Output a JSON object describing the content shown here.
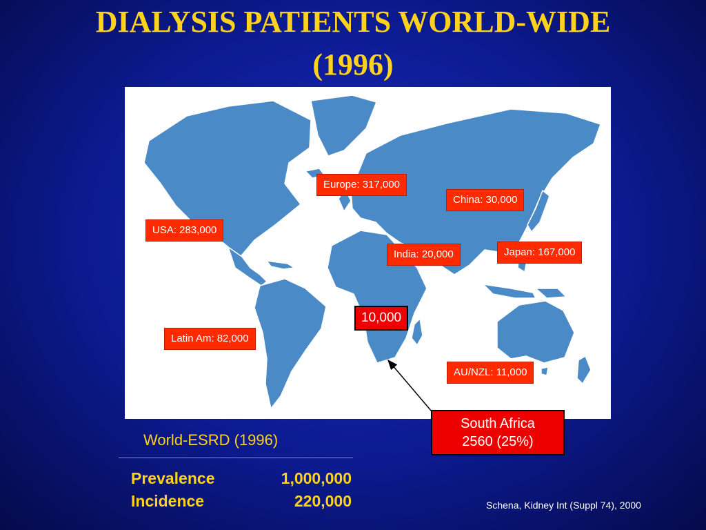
{
  "title": {
    "line1": "DIALYSIS PATIENTS WORLD-WIDE",
    "line2": "(1996)"
  },
  "map": {
    "land_color": "#4a8ac6",
    "ocean_color": "#ffffff",
    "labels": {
      "europe": "Europe: 317,000",
      "china": "China: 30,000",
      "usa": "USA: 283,000",
      "india": "India: 20,000",
      "japan": "Japan: 167,000",
      "africa": "10,000",
      "latin_america": "Latin Am: 82,000",
      "au_nzl": "AU/NZL: 11,000"
    },
    "label_color": "#ff2a00"
  },
  "callout": {
    "line1": "South Africa",
    "line2": "2560 (25%)"
  },
  "stats": {
    "heading": "World-ESRD (1996)",
    "rows": [
      {
        "label": "Prevalence",
        "value": "1,000,000"
      },
      {
        "label": "Incidence",
        "value": "220,000"
      }
    ]
  },
  "citation": "Schena, Kidney Int (Suppl 74), 2000"
}
